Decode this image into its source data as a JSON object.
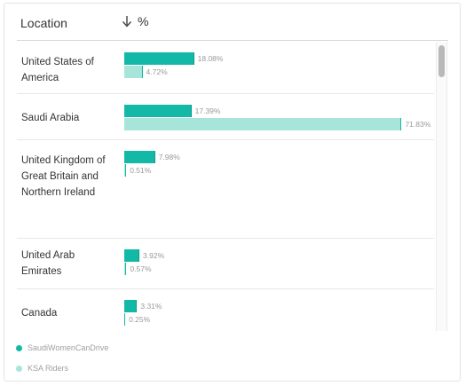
{
  "header": {
    "location_label": "Location",
    "sort_icon": "arrow-down-icon",
    "value_label": "%"
  },
  "chart_data": {
    "type": "bar",
    "orientation": "horizontal",
    "categories": [
      "United States of America",
      "Saudi Arabia",
      "United Kingdom of Great Britain and Northern Ireland",
      "United Arab Emirates",
      "Canada"
    ],
    "series": [
      {
        "name": "SaudiWomenCanDrive",
        "color": "#13b9a6",
        "values": [
          18.08,
          17.39,
          7.98,
          3.92,
          3.31
        ],
        "labels": [
          "18.08%",
          "17.39%",
          "7.98%",
          "3.92%",
          "3.31%"
        ]
      },
      {
        "name": "KSA Riders",
        "color": "#a7e5da",
        "values": [
          4.72,
          71.83,
          0.51,
          0.57,
          0.25
        ],
        "labels": [
          "4.72%",
          "71.83%",
          "0.51%",
          "0.57%",
          "0.25%"
        ]
      }
    ],
    "xlim": [
      0,
      100
    ],
    "legend_position": "bottom-left"
  },
  "legend": [
    {
      "label": "SaudiWomenCanDrive",
      "color": "#13b9a6"
    },
    {
      "label": "KSA Riders",
      "color": "#a7e5da"
    }
  ]
}
